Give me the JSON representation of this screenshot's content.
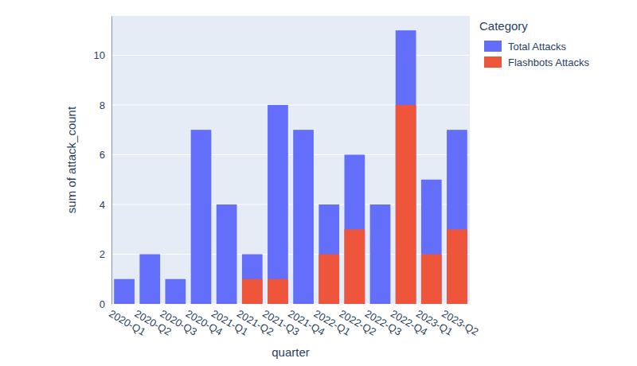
{
  "chart_data": {
    "type": "bar",
    "x_label": "quarter",
    "y_label": "sum of attack_count",
    "legend_title": "Category",
    "categories": [
      "2020-Q1",
      "2020-Q2",
      "2020-Q3",
      "2020-Q4",
      "2021-Q1",
      "2021-Q2",
      "2021-Q3",
      "2021-Q4",
      "2022-Q1",
      "2022-Q2",
      "2022-Q3",
      "2022-Q4",
      "2023-Q1",
      "2023-Q2"
    ],
    "series": [
      {
        "name": "Total Attacks",
        "color": "#636efa",
        "values": [
          1,
          2,
          1,
          7,
          4,
          2,
          8,
          7,
          4,
          6,
          4,
          11,
          5,
          7
        ]
      },
      {
        "name": "Flashbots Attacks",
        "color": "#ef553b",
        "values": [
          0,
          0,
          0,
          0,
          0,
          1,
          1,
          0,
          2,
          3,
          0,
          8,
          2,
          3
        ]
      }
    ],
    "stacked": false,
    "ylim": [
      0,
      11.58
    ],
    "yticks": [
      0,
      2,
      4,
      6,
      8,
      10
    ],
    "grid": true,
    "legend": "top-right"
  }
}
